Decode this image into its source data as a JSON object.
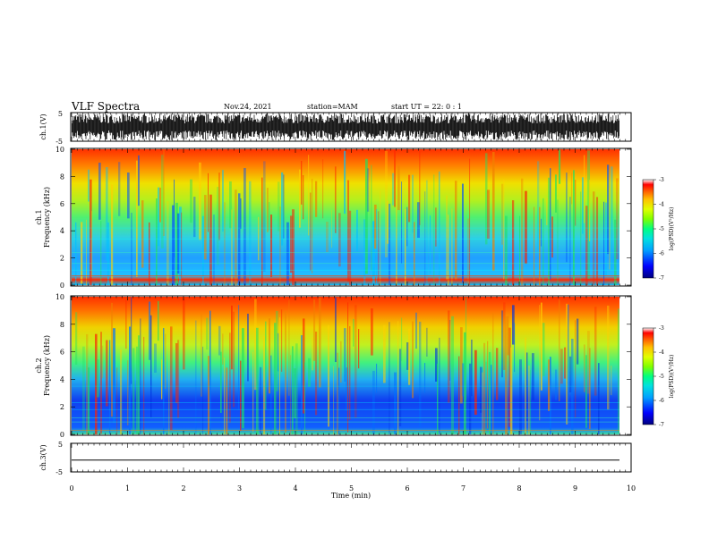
{
  "header": {
    "title": "VLF Spectra",
    "date": "Nov.24, 2021",
    "station": "station=MAM",
    "start": "start UT =  22: 0  : 1"
  },
  "panels": {
    "ch1v": {
      "label": "ch.1(V)",
      "tick_top": "5",
      "tick_bottom": "-5"
    },
    "ch3v": {
      "label": "ch.3(V)",
      "tick_top": "5",
      "tick_bottom": "-5"
    },
    "spec1": {
      "channel": "ch.1",
      "ylabel": "Frequency  (kHz)"
    },
    "spec2": {
      "channel": "ch.2",
      "ylabel": "Frequency  (kHz)"
    }
  },
  "colorbar": {
    "label": "log(PSD)(V²/Hz)",
    "ticks": [
      "-3",
      "-4",
      "-5",
      "-6",
      "-7"
    ],
    "colors": [
      "#000080",
      "#0000ff",
      "#00a0ff",
      "#00e0e0",
      "#00ff80",
      "#80ff00",
      "#e0ff00",
      "#ffc000",
      "#ff6000",
      "#ff0000",
      "#ffffff"
    ]
  },
  "axes": {
    "freq_ticks": [
      "0",
      "2",
      "4",
      "6",
      "8",
      "10"
    ],
    "time_ticks": [
      "0",
      "1",
      "2",
      "3",
      "4",
      "5",
      "6",
      "7",
      "8",
      "9",
      "10"
    ],
    "xlabel": "Time  (min)"
  },
  "chart_data": [
    {
      "type": "line",
      "panel": "ch.1(V)",
      "x_range": [
        0,
        10
      ],
      "ylim": [
        -5,
        5
      ],
      "note_series": "noisy waveform spanning full range, ends near 9.8 min"
    },
    {
      "type": "heatmap",
      "panel": "ch.1",
      "x_range": [
        0,
        10
      ],
      "ylim": [
        0,
        10
      ],
      "z_range": [
        -7,
        -3
      ],
      "data_end_time": 9.8
    },
    {
      "type": "heatmap",
      "panel": "ch.2",
      "x_range": [
        0,
        10
      ],
      "ylim": [
        0,
        10
      ],
      "z_range": [
        -7,
        -3
      ],
      "data_end_time": 9.8
    },
    {
      "type": "line",
      "panel": "ch.3(V)",
      "x_range": [
        0,
        10
      ],
      "ylim": [
        -5,
        5
      ],
      "values": [
        -1,
        -1
      ]
    }
  ]
}
